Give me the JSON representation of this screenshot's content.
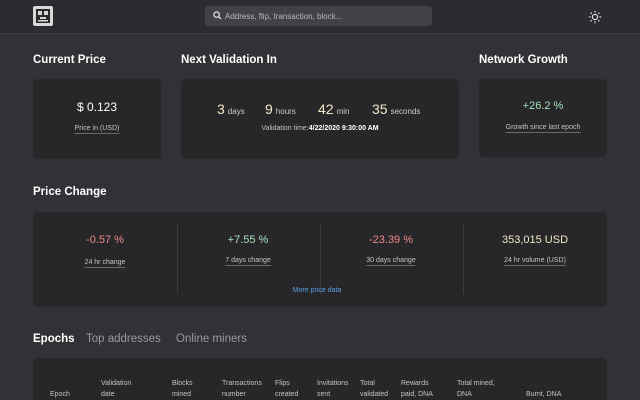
{
  "header": {
    "search_placeholder": "Address, flip, transaction, block...",
    "search_icon": "search-icon",
    "theme_icon": "sun-icon"
  },
  "current_price": {
    "title": "Current Price",
    "value": "$ 0.123",
    "label": "Price in (USD)"
  },
  "next_validation": {
    "title": "Next Validation In",
    "days": "3",
    "days_unit": "days",
    "hours": "9",
    "hours_unit": "hours",
    "minutes": "42",
    "minutes_unit": "min",
    "seconds": "35",
    "seconds_unit": "seconds",
    "time_label": "Validation time:",
    "time_value": "4/22/2020 9:30:00 AM"
  },
  "network_growth": {
    "title": "Network Growth",
    "value": "+26.2 %",
    "label": "Growth since last epoch"
  },
  "price_change": {
    "title": "Price Change",
    "items": [
      {
        "value": "-0.57 %",
        "label": "24 hr change"
      },
      {
        "value": "+7.55 %",
        "label": "7 days change"
      },
      {
        "value": "-23.39 %",
        "label": "30 days change"
      },
      {
        "value": "353,015 USD",
        "label": "24 hr volume (USD)"
      }
    ],
    "more_link": "More price data"
  },
  "tabs": [
    {
      "label": "Epochs"
    },
    {
      "label": "Top addresses"
    },
    {
      "label": "Online miners"
    }
  ],
  "epochs_table": {
    "headers": [
      [
        "Epoch"
      ],
      [
        "Validation",
        "date"
      ],
      [
        "Blocks",
        "mined"
      ],
      [
        "Transactions",
        "number"
      ],
      [
        "Flips",
        "created"
      ],
      [
        "Invitations",
        "sent"
      ],
      [
        "Total",
        "validated"
      ],
      [
        "Rewards",
        "paid, DNA"
      ],
      [
        "Total mined,",
        "DNA"
      ],
      [
        "Burnt, DNA"
      ]
    ]
  },
  "colors": {
    "background": "#323236",
    "card": "#27272a",
    "negative": "#ef8a8a",
    "positive": "#a6e2b8",
    "accent_link": "#5a9fe6"
  }
}
